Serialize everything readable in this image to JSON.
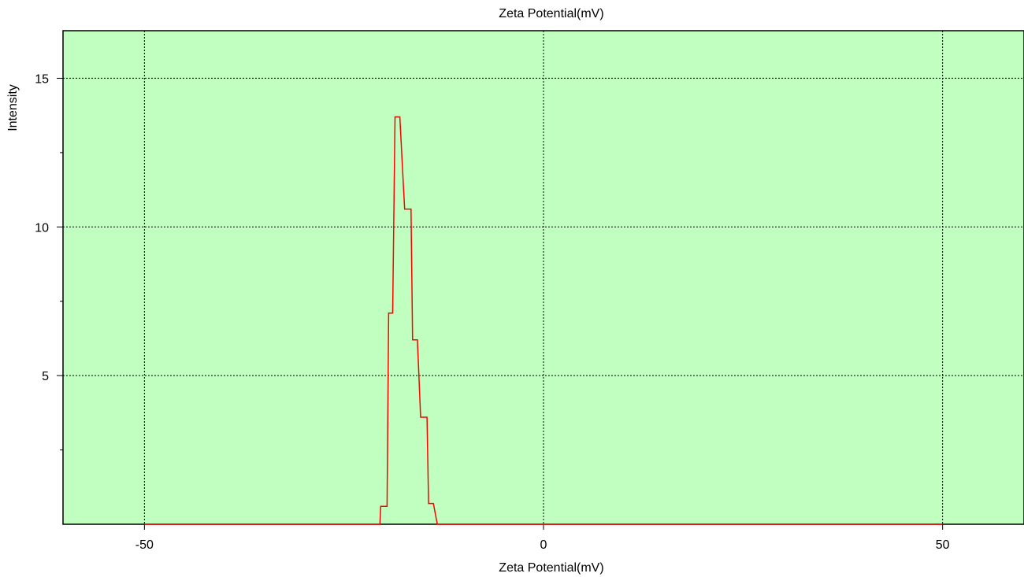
{
  "chart_data": {
    "type": "line",
    "title": "Zeta Potential(mV)",
    "xlabel": "Zeta Potential(mV)",
    "ylabel": "Intensity",
    "xlim": [
      -60.2,
      60.2
    ],
    "ylim": [
      0,
      16.6
    ],
    "x_ticks": [
      -50,
      0,
      50
    ],
    "x_tick_labels": [
      "-50",
      "0",
      "50"
    ],
    "y_ticks": [
      5,
      10,
      15
    ],
    "y_tick_labels": [
      "5",
      "10",
      "15"
    ],
    "y_minor_ticks": [
      2.5,
      7.5,
      12.5
    ],
    "grid": true,
    "plot_background": "#c0ffc0",
    "series": [
      {
        "color": "#ff0000",
        "x": [
          -50,
          -20.5,
          -20.4,
          -19.6,
          -19.4,
          -18.9,
          -18.6,
          -18.0,
          -17.4,
          -16.6,
          -16.4,
          -15.8,
          -15.4,
          -14.6,
          -14.4,
          -13.8,
          -13.3,
          50
        ],
        "y": [
          0,
          0,
          0.6,
          0.6,
          7.1,
          7.1,
          13.7,
          13.7,
          10.6,
          10.6,
          6.2,
          6.2,
          3.6,
          3.6,
          0.7,
          0.7,
          0,
          0
        ]
      }
    ]
  }
}
